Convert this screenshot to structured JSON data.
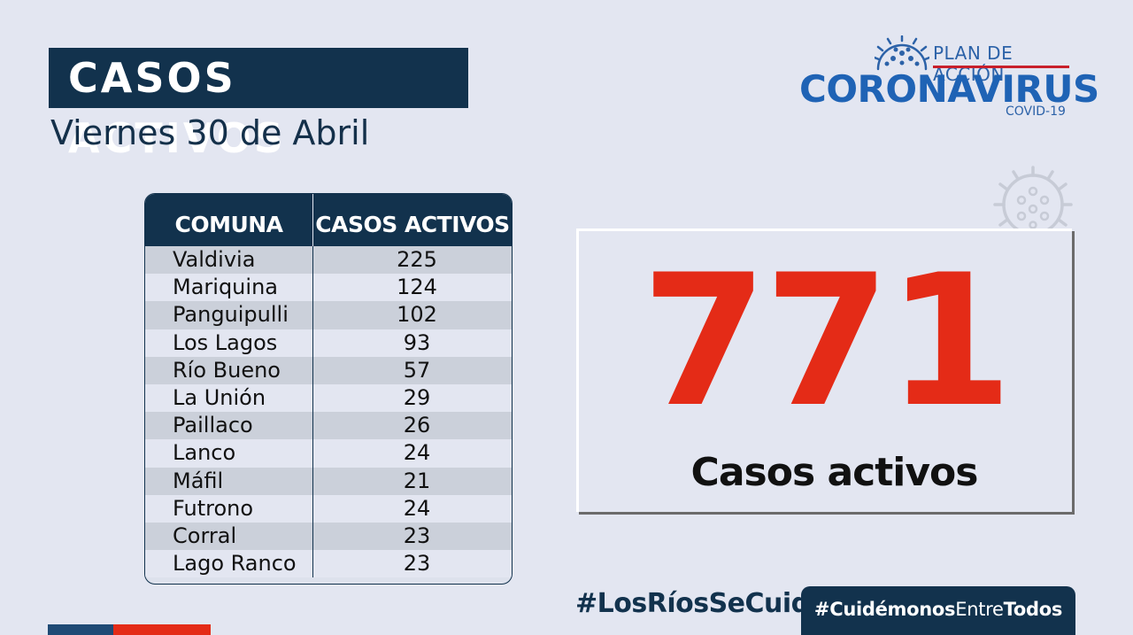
{
  "header": {
    "title": "CASOS ACTIVOS",
    "date": "Viernes 30 de Abril"
  },
  "logo": {
    "plan": "PLAN DE ACCIÓN",
    "main": "CORONAVIRUS",
    "sub": "COVID-19"
  },
  "table": {
    "headers": [
      "COMUNA",
      "CASOS ACTIVOS"
    ],
    "rows": [
      {
        "comuna": "Valdivia",
        "casos": "225"
      },
      {
        "comuna": "Mariquina",
        "casos": "124"
      },
      {
        "comuna": "Panguipulli",
        "casos": "102"
      },
      {
        "comuna": "Los Lagos",
        "casos": "93"
      },
      {
        "comuna": "Río Bueno",
        "casos": "57"
      },
      {
        "comuna": "La Unión",
        "casos": "29"
      },
      {
        "comuna": "Paillaco",
        "casos": "26"
      },
      {
        "comuna": "Lanco",
        "casos": "24"
      },
      {
        "comuna": "Máfil",
        "casos": "21"
      },
      {
        "comuna": "Futrono",
        "casos": "24"
      },
      {
        "comuna": "Corral",
        "casos": "23"
      },
      {
        "comuna": "Lago Ranco",
        "casos": "23"
      }
    ]
  },
  "summary": {
    "total": "771",
    "label": "Casos activos"
  },
  "footer": {
    "hashtag1": "#LosRíosSeCuida",
    "hashtag2_a": "#Cuidémonos",
    "hashtag2_b": "Entre",
    "hashtag2_c": "Todos"
  },
  "colors": {
    "navy": "#12324d",
    "red": "#e42b17",
    "background": "#e3e6f1"
  },
  "icons": [
    "coronavirus-icon"
  ]
}
